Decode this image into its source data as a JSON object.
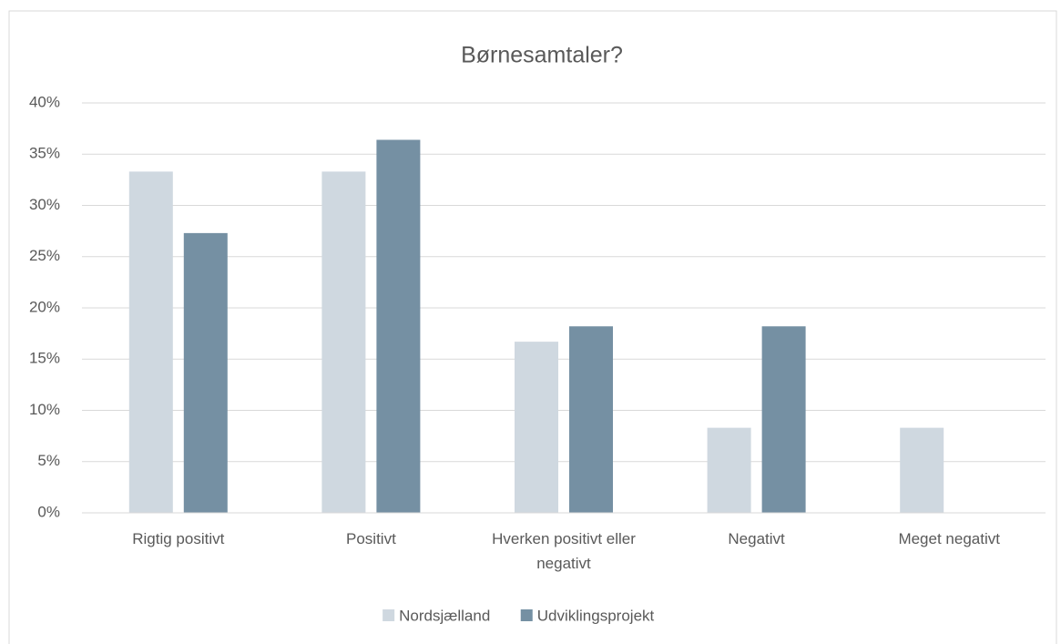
{
  "chart_data": {
    "type": "bar",
    "title": "Børnesamtaler?",
    "categories": [
      "Rigtig positivt",
      "Positivt",
      "Hverken positivt eller negativt",
      "Negativt",
      "Meget negativt"
    ],
    "series": [
      {
        "name": "Nordsjælland",
        "color": "#cfd8e0",
        "values": [
          33.3,
          33.3,
          16.7,
          8.3,
          8.3
        ]
      },
      {
        "name": "Udviklingsprojekt",
        "color": "#7590a3",
        "values": [
          27.3,
          36.4,
          18.2,
          18.2,
          0
        ]
      }
    ],
    "ylim": [
      0,
      40
    ],
    "yticks": [
      {
        "value": 0,
        "label": "0%"
      },
      {
        "value": 5,
        "label": "5%"
      },
      {
        "value": 10,
        "label": "10%"
      },
      {
        "value": 15,
        "label": "15%"
      },
      {
        "value": 20,
        "label": "20%"
      },
      {
        "value": 25,
        "label": "25%"
      },
      {
        "value": 30,
        "label": "30%"
      },
      {
        "value": 35,
        "label": "35%"
      },
      {
        "value": 40,
        "label": "40%"
      }
    ],
    "grid": true,
    "legend": "bottom"
  }
}
